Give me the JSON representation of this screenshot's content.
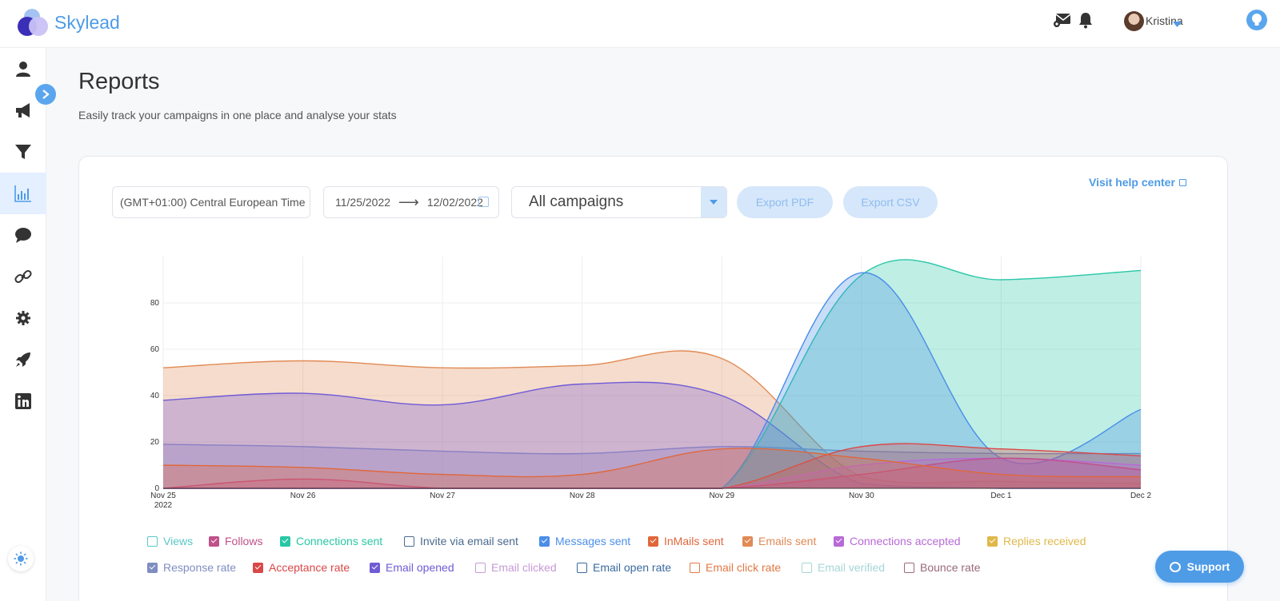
{
  "app": {
    "name": "Skylead"
  },
  "header": {
    "user_name": "Kristina",
    "icons": [
      "mail-icon",
      "bell-icon",
      "lightbulb-icon"
    ]
  },
  "sidebar": {
    "items": [
      {
        "icon": "user-icon"
      },
      {
        "icon": "megaphone-icon"
      },
      {
        "icon": "filter-icon"
      },
      {
        "icon": "chart-icon",
        "active": true
      },
      {
        "icon": "chat-icon"
      },
      {
        "icon": "link-icon"
      },
      {
        "icon": "gear-icon"
      },
      {
        "icon": "rocket-icon"
      },
      {
        "icon": "linkedin-icon"
      }
    ]
  },
  "page": {
    "title": "Reports",
    "subtitle": "Easily track your campaigns in one place and analyse your stats"
  },
  "filters": {
    "timezone": "(GMT+01:00) Central European Time",
    "date_from": "11/25/2022",
    "date_to": "12/02/2022",
    "campaign": "All campaigns",
    "export_pdf": "Export PDF",
    "export_csv": "Export CSV",
    "help_link": "Visit help center"
  },
  "chart_data": {
    "type": "area",
    "x": [
      "Nov 25",
      "Nov 26",
      "Nov 27",
      "Nov 28",
      "Nov 29",
      "Nov 30",
      "Dec 1",
      "Dec 2"
    ],
    "x_sublabel_first": "2022",
    "yticks": [
      0,
      20,
      40,
      60,
      80
    ],
    "ylim": [
      0,
      100
    ],
    "series": [
      {
        "name": "Emails sent",
        "color": "#e08a55",
        "values": [
          52,
          55,
          52,
          53,
          56,
          5,
          3,
          2
        ]
      },
      {
        "name": "Email opened",
        "color": "#6f5bd6",
        "values": [
          38,
          41,
          36,
          45,
          40,
          2,
          0,
          0
        ]
      },
      {
        "name": "Response rate",
        "color": "#8a7fc2",
        "values": [
          19,
          18,
          16,
          15,
          18,
          16,
          15,
          15
        ]
      },
      {
        "name": "Connections sent",
        "color": "#29c7a6",
        "values": [
          0,
          0,
          0,
          0,
          0,
          92,
          90,
          94
        ]
      },
      {
        "name": "Messages sent",
        "color": "#4a8ee8",
        "values": [
          0,
          0,
          0,
          0,
          0,
          93,
          13,
          34
        ]
      },
      {
        "name": "Acceptance rate",
        "color": "#d94848",
        "values": [
          0,
          0,
          0,
          0,
          0,
          18,
          17,
          14
        ]
      },
      {
        "name": "Connections accepted",
        "color": "#b86ad6",
        "values": [
          0,
          0,
          0,
          0,
          0,
          10,
          13,
          10
        ]
      },
      {
        "name": "Follows",
        "color": "#c0508a",
        "values": [
          0,
          4,
          0,
          0,
          0,
          6,
          13,
          8
        ]
      },
      {
        "name": "InMails sent",
        "color": "#e0673a",
        "values": [
          10,
          9,
          6,
          6,
          17,
          13,
          6,
          5
        ]
      }
    ],
    "grid": true
  },
  "legend": {
    "row1": [
      {
        "label": "Views",
        "color": "#5bc8c8",
        "checked": false
      },
      {
        "label": "Follows",
        "color": "#c0508a",
        "checked": true
      },
      {
        "label": "Connections sent",
        "color": "#29c7a6",
        "checked": true
      },
      {
        "label": "Invite via email sent",
        "color": "#4a6a8e",
        "checked": false
      },
      {
        "label": "Messages sent",
        "color": "#4a8ee8",
        "checked": true
      },
      {
        "label": "InMails sent",
        "color": "#e0673a",
        "checked": true
      },
      {
        "label": "Emails sent",
        "color": "#e08a55",
        "checked": true
      },
      {
        "label": "Connections accepted",
        "color": "#b86ad6",
        "checked": true
      },
      {
        "label": "Replies received",
        "color": "#e0b84a",
        "checked": true
      }
    ],
    "row2": [
      {
        "label": "Response rate",
        "color": "#7f8ec2",
        "checked": true
      },
      {
        "label": "Acceptance rate",
        "color": "#d94848",
        "checked": true
      },
      {
        "label": "Email opened",
        "color": "#6f5bd6",
        "checked": true
      },
      {
        "label": "Email clicked",
        "color": "#c79ad6",
        "checked": false
      },
      {
        "label": "Email open rate",
        "color": "#3b6a9e",
        "checked": false
      },
      {
        "label": "Email click rate",
        "color": "#e07a45",
        "checked": false
      },
      {
        "label": "Email verified",
        "color": "#a7d6d6",
        "checked": false
      },
      {
        "label": "Bounce rate",
        "color": "#9a6a7a",
        "checked": false
      }
    ]
  },
  "support": {
    "label": "Support"
  }
}
